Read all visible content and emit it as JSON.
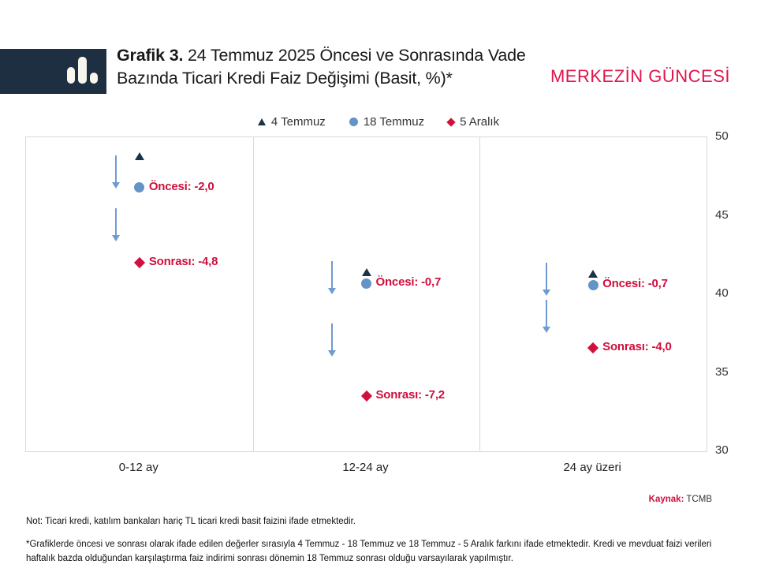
{
  "header": {
    "title_bold": "Grafik 3.",
    "title_rest": " 24 Temmuz 2025 Öncesi ve Sonrasında Vade Bazında Ticari Kredi Faiz Değişimi (Basit, %)*",
    "masthead": "MERKEZİN GÜNCESİ"
  },
  "chart_data": {
    "type": "scatter",
    "title": "Grafik 3. 24 Temmuz 2025 Öncesi ve Sonrasında Vade Bazında Ticari Kredi Faiz Değişimi (Basit, %)*",
    "categories": [
      "0-12 ay",
      "12-24 ay",
      "24 ay üzeri"
    ],
    "series": [
      {
        "name": "4 Temmuz",
        "marker": "triangle",
        "color": "#1b3349",
        "values": [
          48.8,
          41.4,
          41.3
        ]
      },
      {
        "name": "18 Temmuz",
        "marker": "circle",
        "color": "#6493c8",
        "values": [
          46.8,
          40.7,
          40.6
        ]
      },
      {
        "name": "5 Aralık",
        "marker": "diamond",
        "color": "#d0113e",
        "values": [
          42.0,
          33.5,
          36.6
        ]
      }
    ],
    "panel_labels": [
      {
        "oncesi": "Öncesi: -2,0",
        "sonrasi": "Sonrası: -4,8"
      },
      {
        "oncesi": "Öncesi: -0,7",
        "sonrasi": "Sonrası: -7,2"
      },
      {
        "oncesi": "Öncesi: -0,7",
        "sonrasi": "Sonrası: -4,0"
      }
    ],
    "ylim": [
      30,
      50
    ],
    "yticks": [
      50,
      45,
      40,
      35,
      30
    ],
    "grid": false,
    "legend_position": "top"
  },
  "source": {
    "label": "Kaynak:",
    "value": "TCMB"
  },
  "notes": {
    "note": "Not: Ticari kredi, katılım bankaları hariç TL ticari kredi basit faizini ifade etmektedir.",
    "footnote": "*Grafiklerde öncesi ve sonrası olarak ifade edilen değerler sırasıyla 4 Temmuz - 18 Temmuz ve 18 Temmuz - 5 Aralık farkını ifade etmektedir. Kredi ve mevduat faizi verileri haftalık bazda olduğundan karşılaştırma faiz indirimi sonrası dönemin 18 Temmuz sonrası olduğu varsayılarak yapılmıştır."
  },
  "colors": {
    "brand_navy": "#1e2f41",
    "brand_red": "#e2134b",
    "label_red": "#ce0f3d",
    "arrow_blue": "#6f9bd1",
    "border_gray": "#d9d9d9"
  }
}
